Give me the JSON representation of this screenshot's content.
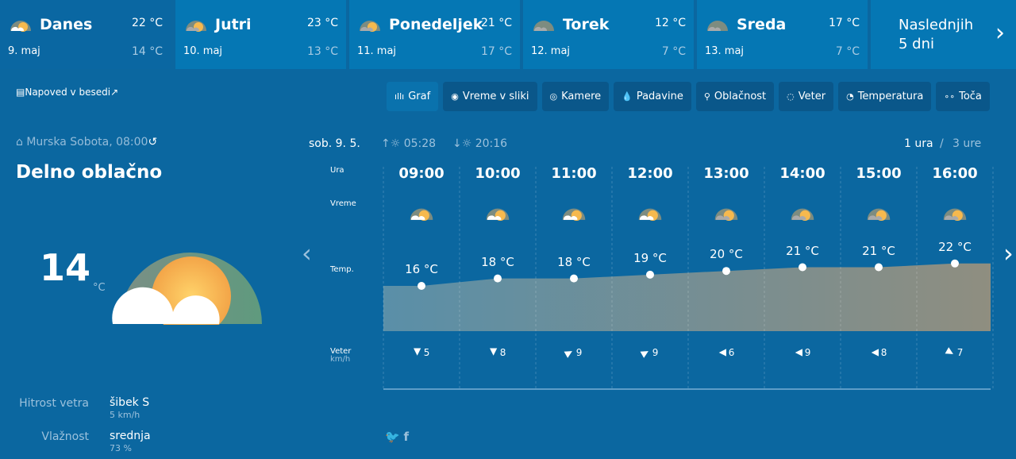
{
  "days": [
    {
      "name": "Danes",
      "date": "9. maj",
      "high": "22 °C",
      "low": "14 °C",
      "icon": "partly-cloudy-icon"
    },
    {
      "name": "Jutri",
      "date": "10. maj",
      "high": "23 °C",
      "low": "13 °C",
      "icon": "cloudy-sun-icon"
    },
    {
      "name": "Ponedeljek",
      "date": "11. maj",
      "high": "21 °C",
      "low": "17 °C",
      "icon": "cloudy-sun-icon"
    },
    {
      "name": "Torek",
      "date": "12. maj",
      "high": "12 °C",
      "low": "7 °C",
      "icon": "overcast-icon"
    },
    {
      "name": "Sreda",
      "date": "13. maj",
      "high": "17 °C",
      "low": "7 °C",
      "icon": "overcast-icon"
    }
  ],
  "next_label": "Naslednjih 5 dni",
  "text_forecast": "Napoved v besedi",
  "tabs": [
    {
      "label": "Graf",
      "icon": "bar-chart-icon",
      "symbol": "ıllı"
    },
    {
      "label": "Vreme v sliki",
      "icon": "location-pin-icon",
      "symbol": "◉"
    },
    {
      "label": "Kamere",
      "icon": "camera-icon",
      "symbol": "◎"
    },
    {
      "label": "Padavine",
      "icon": "drop-icon",
      "symbol": "💧"
    },
    {
      "label": "Oblačnost",
      "icon": "satellite-icon",
      "symbol": "⚲"
    },
    {
      "label": "Veter",
      "icon": "wind-icon",
      "symbol": "◌"
    },
    {
      "label": "Temperatura",
      "icon": "thermometer-icon",
      "symbol": "◔"
    },
    {
      "label": "Toča",
      "icon": "hail-icon",
      "symbol": "∘∘"
    }
  ],
  "current": {
    "location": "Murska Sobota, 08:00",
    "condition": "Delno oblačno",
    "temp": "14",
    "unit": "°C",
    "wind_label": "Hitrost vetra",
    "wind": "šibek S",
    "wind_speed": "5 km/h",
    "humidity_label": "Vlažnost",
    "humidity": "srednja",
    "humidity_pct": "73 %"
  },
  "header": {
    "date": "sob. 9. 5.",
    "sunrise": "05:28",
    "sunset": "20:16",
    "res_1": "1 ura",
    "sep": "/",
    "res_3": "3 ure"
  },
  "row_labels": {
    "hour": "Ura",
    "weather": "Vreme",
    "temp": "Temp.",
    "wind": "Veter",
    "wind_unit": "km/h"
  },
  "chart_data": {
    "type": "area",
    "x": [
      "09:00",
      "10:00",
      "11:00",
      "12:00",
      "13:00",
      "14:00",
      "15:00",
      "16:00"
    ],
    "temps": [
      16,
      18,
      18,
      19,
      20,
      21,
      21,
      22
    ],
    "temp_labels": [
      "16 °C",
      "18 °C",
      "18 °C",
      "19 °C",
      "20 °C",
      "21 °C",
      "21 °C",
      "22 °C"
    ],
    "icons": [
      "partly-cloudy",
      "partly-cloudy",
      "partly-cloudy",
      "partly-cloudy",
      "cloudy-sun",
      "cloudy-sun",
      "cloudy-sun",
      "cloudy-sun"
    ],
    "wind_speed": [
      "5",
      "8",
      "9",
      "9",
      "6",
      "9",
      "8",
      "7"
    ],
    "wind_arrow_deg": [
      180,
      180,
      60,
      60,
      -90,
      -90,
      -90,
      120
    ]
  },
  "colors": {
    "background": "#0b67a0",
    "tab": "#0577b4",
    "button": "#0a578a"
  }
}
